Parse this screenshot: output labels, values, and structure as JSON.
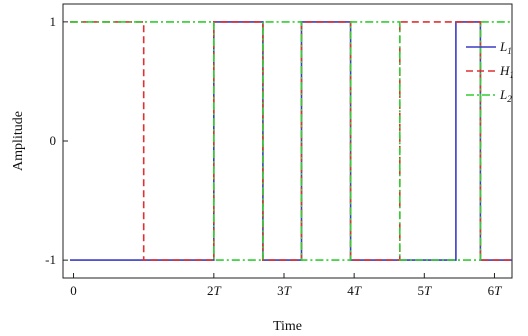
{
  "chart_data": {
    "type": "line",
    "step": true,
    "xlabel": "Time",
    "ylabel": "Amplitude",
    "xlim": [
      -0.15,
      6.25
    ],
    "ylim": [
      -1.15,
      1.15
    ],
    "x_unit": "T",
    "xticks": [
      {
        "value": 0,
        "label": "0"
      },
      {
        "value": 2,
        "label": "2T"
      },
      {
        "value": 3,
        "label": "3T"
      },
      {
        "value": 4,
        "label": "4T"
      },
      {
        "value": 5,
        "label": "5T"
      },
      {
        "value": 6,
        "label": "6T"
      }
    ],
    "yticks": [
      {
        "value": 1,
        "label": "1"
      },
      {
        "value": 0,
        "label": "0"
      },
      {
        "value": -1,
        "label": "-1"
      }
    ],
    "series": [
      {
        "name": "L1",
        "color": "#3b3bc4",
        "dash": "solid",
        "x": [
          -0.05,
          2.0,
          2.0,
          2.7,
          2.7,
          3.25,
          3.25,
          3.95,
          3.95,
          5.45,
          5.45,
          5.8,
          5.8,
          6.7,
          6.7,
          7.15
        ],
        "y": [
          -1,
          -1,
          1,
          1,
          -1,
          -1,
          1,
          1,
          -1,
          -1,
          1,
          1,
          -1,
          -1,
          1,
          1
        ]
      },
      {
        "name": "H1",
        "color": "#e03030",
        "dash": "dashed",
        "x": [
          -0.05,
          1.0,
          1.0,
          2.0,
          2.0,
          2.7,
          2.7,
          3.25,
          3.25,
          3.95,
          3.95,
          4.65,
          4.65,
          5.8,
          5.8,
          7.15
        ],
        "y": [
          1,
          1,
          -1,
          -1,
          1,
          1,
          -1,
          -1,
          1,
          1,
          -1,
          -1,
          1,
          1,
          -1,
          -1
        ]
      },
      {
        "name": "L2",
        "color": "#33cc33",
        "dash": "dashdot",
        "x": [
          -0.05,
          2.0,
          2.0,
          2.7,
          2.7,
          3.25,
          3.25,
          3.95,
          3.95,
          4.65,
          4.65,
          5.8,
          5.8,
          6.7,
          6.7,
          7.15
        ],
        "y": [
          1,
          1,
          -1,
          -1,
          1,
          1,
          -1,
          -1,
          1,
          1,
          -1,
          -1,
          1,
          1,
          -1,
          -1
        ]
      }
    ],
    "legend": {
      "placement": "top-right",
      "entries": [
        {
          "main": "L",
          "sub": "1",
          "series": 0
        },
        {
          "main": "H",
          "sub": "1",
          "series": 1
        },
        {
          "main": "L",
          "sub": "2",
          "series": 2
        }
      ]
    },
    "grid": false
  }
}
